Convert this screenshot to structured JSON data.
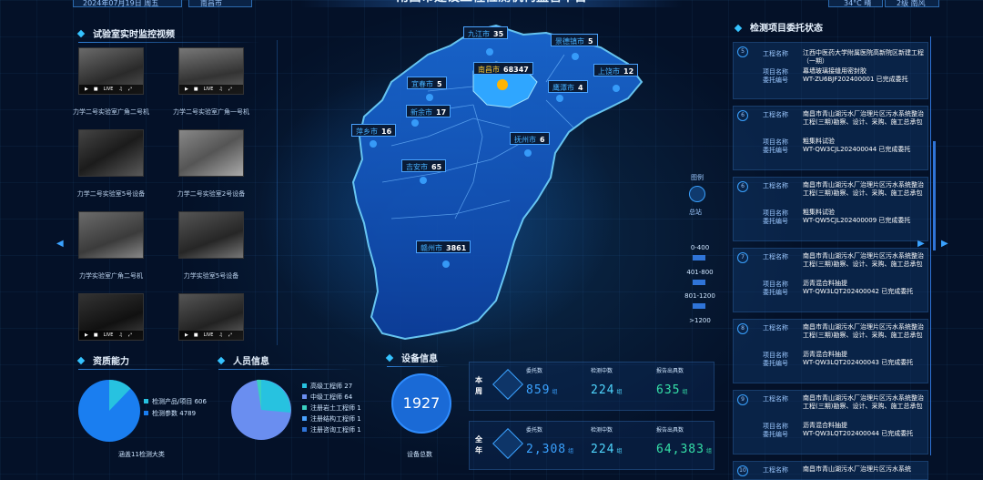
{
  "header": {
    "date": "2024年07月19日 周五",
    "city": "南昌市",
    "title": "南昌市建设工程检测机构监管平台",
    "weather": "34°C 晴",
    "wind": "2级 南风"
  },
  "camera_panel": {
    "title": "试验室实时监控视频",
    "cameras": [
      {
        "label": "力学二号实验室广角二号机"
      },
      {
        "label": "力学二号实验室广角一号机"
      },
      {
        "label": "力学二号实验室5号设备"
      },
      {
        "label": "力学二号实验室2号设备"
      },
      {
        "label": "力学实验室广角二号机"
      },
      {
        "label": "力学实验室5号设备"
      },
      {
        "label": ""
      },
      {
        "label": ""
      }
    ],
    "controls": {
      "live": "LIVE"
    }
  },
  "map": {
    "cities": [
      {
        "name": "九江市",
        "value": "35"
      },
      {
        "name": "景德镇市",
        "value": "5"
      },
      {
        "name": "南昌市",
        "value": "68347"
      },
      {
        "name": "上饶市",
        "value": "12"
      },
      {
        "name": "宜春市",
        "value": "5"
      },
      {
        "name": "鹰潭市",
        "value": "4"
      },
      {
        "name": "新余市",
        "value": "17"
      },
      {
        "name": "萍乡市",
        "value": "16"
      },
      {
        "name": "抚州市",
        "value": "6"
      },
      {
        "name": "吉安市",
        "value": "65"
      },
      {
        "name": "赣州市",
        "value": "3861"
      }
    ],
    "legend": {
      "title": "图例",
      "station": "总站",
      "ranges": [
        "0-400",
        "401-800",
        "801-1200",
        ">1200"
      ]
    }
  },
  "projects_panel": {
    "title": "检测项目委托状态",
    "key_project": "工程名称",
    "key_item": "项目名称",
    "key_code": "委托编号",
    "items": [
      {
        "num": "5",
        "project": "江西中医药大学附属医院高新院区新建工程（一期）",
        "item": "幕墙玻璃接缝用密封胶",
        "code": "WT-ZU6BJF202400001 已完成委托"
      },
      {
        "num": "6",
        "project": "南昌市青山湖污水厂治理片区污水系统整治工程(三期)勘察、设计、采购、施工总承包",
        "item": "粗集料试验",
        "code": "WT-QW3CJL202400044 已完成委托"
      },
      {
        "num": "6",
        "project": "南昌市青山湖污水厂治理片区污水系统整治工程(三期)勘察、设计、采购、施工总承包",
        "item": "粗集料试验",
        "code": "WT-QW5CJL202400009 已完成委托"
      },
      {
        "num": "7",
        "project": "南昌市青山湖污水厂治理片区污水系统整治工程(三期)勘察、设计、采购、施工总承包",
        "item": "沥青混合料抽提",
        "code": "WT-QW3LQT202400042 已完成委托"
      },
      {
        "num": "8",
        "project": "南昌市青山湖污水厂治理片区污水系统整治工程(三期)勘察、设计、采购、施工总承包",
        "item": "沥青混合料抽提",
        "code": "WT-QW3LQT202400043 已完成委托"
      },
      {
        "num": "9",
        "project": "南昌市青山湖污水厂治理片区污水系统整治工程(三期)勘察、设计、采购、施工总承包",
        "item": "沥青混合料抽提",
        "code": "WT-QW3LQT202400044 已完成委托"
      },
      {
        "num": "10",
        "project": "南昌市青山湖污水厂治理片区污水系统",
        "item": "",
        "code": ""
      }
    ]
  },
  "qualification": {
    "title": "资质能力",
    "legend": [
      {
        "label": "检测产品/项目",
        "value": "606",
        "color": "#27c2e0"
      },
      {
        "label": "检测参数",
        "value": "4789",
        "color": "#1a7ef0"
      }
    ],
    "footer": "涵盖11检测大类"
  },
  "personnel": {
    "title": "人员信息",
    "legend": [
      {
        "label": "高级工程师",
        "value": "27",
        "color": "#27c2e0"
      },
      {
        "label": "中级工程师",
        "value": "64",
        "color": "#6a8ef0"
      },
      {
        "label": "注册岩土工程师",
        "value": "1",
        "color": "#3ad0c0"
      },
      {
        "label": "注册结构工程师",
        "value": "1",
        "color": "#4aa3ff"
      },
      {
        "label": "注册咨询工程师",
        "value": "1",
        "color": "#2f74d8"
      }
    ]
  },
  "equipment": {
    "title": "设备信息",
    "total": "1927",
    "footer": "设备总数"
  },
  "stats": {
    "week": {
      "tag": "本周",
      "cols": [
        {
          "label": "委托数",
          "value": "859",
          "unit": "组",
          "color": "#3aa2ff"
        },
        {
          "label": "检测中数",
          "value": "224",
          "unit": "组",
          "color": "#4fd6ff"
        },
        {
          "label": "报告出具数",
          "value": "635",
          "unit": "组",
          "color": "#35e0a8"
        }
      ]
    },
    "year": {
      "tag": "全年",
      "cols": [
        {
          "label": "委托数",
          "value": "2,308",
          "unit": "组",
          "color": "#3aa2ff"
        },
        {
          "label": "检测中数",
          "value": "224",
          "unit": "组",
          "color": "#4fd6ff"
        },
        {
          "label": "报告出具数",
          "value": "64,383",
          "unit": "组",
          "color": "#35e0a8"
        }
      ]
    }
  }
}
